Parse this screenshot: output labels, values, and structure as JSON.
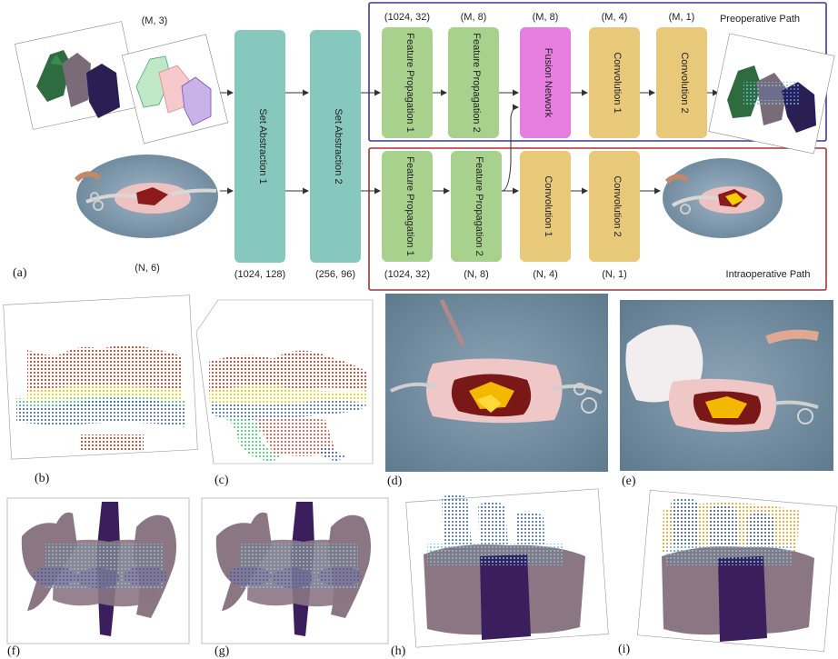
{
  "dims": {
    "pre_input": "(M, 3)",
    "intra_input": "(N, 6)",
    "sa1": "(1024, 128)",
    "sa2": "(256, 96)",
    "pre_fp1": "(1024, 32)",
    "pre_fp2": "(M, 8)",
    "pre_fusion": "(M, 8)",
    "pre_conv1": "(M, 4)",
    "pre_conv2": "(M, 1)",
    "intra_fp1": "(1024, 32)",
    "intra_fp2": "(N, 8)",
    "intra_conv1": "(N, 4)",
    "intra_conv2": "(N, 1)"
  },
  "blocks": {
    "sa1": "Set Abstraction 1",
    "sa2": "Set Abstraction 2",
    "pre_fp1": "Feature Propagation 1",
    "pre_fp2": "Feature Propagation 2",
    "fusion": "Fusion Network",
    "pre_conv1": "Convolution 1",
    "pre_conv2": "Convolution 2",
    "intra_fp1": "Feature Propagation 1",
    "intra_fp2": "Feature Propagation 2",
    "intra_conv1": "Convolution 1",
    "intra_conv2": "Convolution 2"
  },
  "paths": {
    "pre": "Preoperative Path",
    "intra": "Intraoperative Path"
  },
  "panel_labels": {
    "a": "(a)",
    "b": "(b)",
    "c": "(c)",
    "d": "(d)",
    "e": "(e)",
    "f": "(f)",
    "g": "(g)",
    "h": "(h)",
    "i": "(i)"
  },
  "colors": {
    "set_abstraction": "#86c8bd",
    "feature_propagation": "#a9d18e",
    "fusion": "#e67ee0",
    "convolution": "#e8c97a",
    "pre_box": "#3a3a9a",
    "intra_box": "#a83232",
    "bone": "#8b7683",
    "bone_dark": "#3a1f5c",
    "point_blue": "#2a5ad6",
    "point_cyan": "#6cc7e6",
    "point_orange": "#f0a431"
  }
}
